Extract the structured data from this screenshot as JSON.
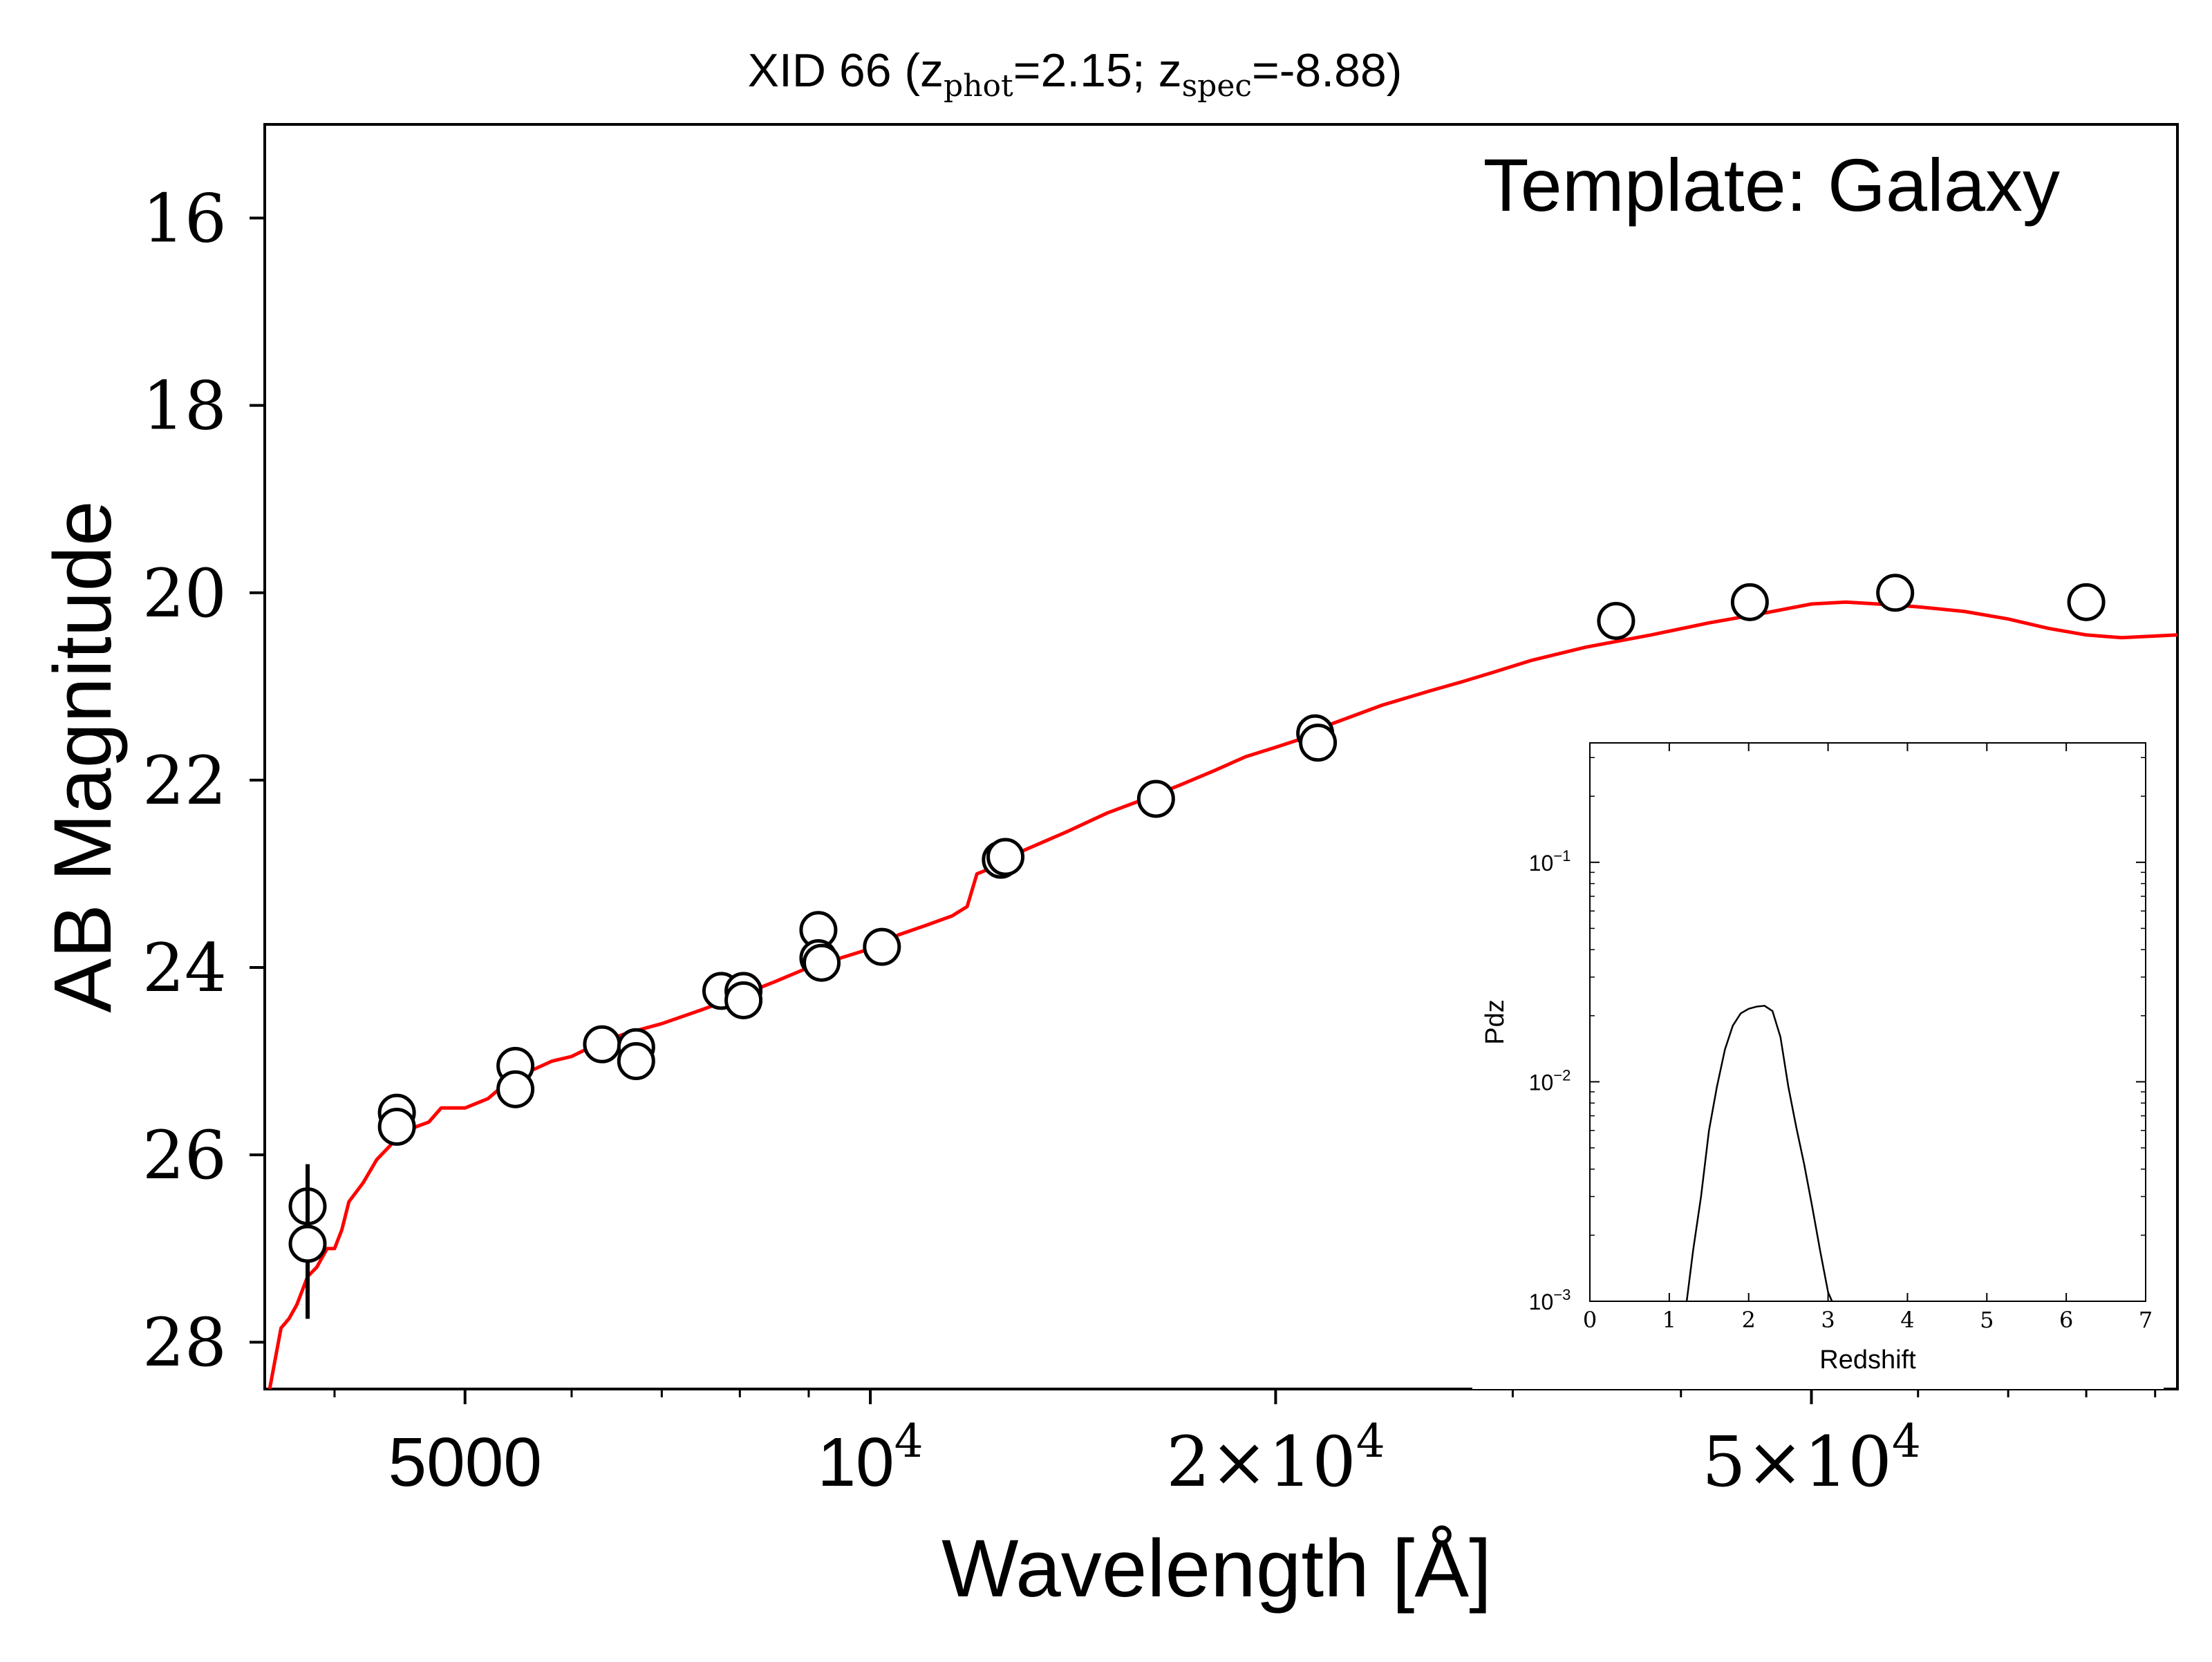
{
  "chart_data": [
    {
      "type": "scatter",
      "title": {
        "prefix": "XID 66 (z",
        "phot_sub": "phot",
        "phot_value": "=2.15; z",
        "spec_sub": "spec",
        "spec_value": "=-8.88)"
      },
      "annotation": "Template: Galaxy",
      "xlabel": "Wavelength [Å]",
      "ylabel": "AB Magnitude",
      "x_scale": "log",
      "xlim": [
        3550,
        93500
      ],
      "ylim": [
        28.5,
        15.0
      ],
      "y_inverted": true,
      "x_ticks": [
        {
          "value": 5000,
          "label": "5000"
        },
        {
          "value": 10000,
          "base": "10",
          "exp": "4"
        },
        {
          "value": 20000,
          "mant": "2×10",
          "exp": "4"
        },
        {
          "value": 50000,
          "mant": "5×10",
          "exp": "4"
        }
      ],
      "y_ticks": [
        {
          "value": 16,
          "label": "16"
        },
        {
          "value": 18,
          "label": "18"
        },
        {
          "value": 20,
          "label": "20"
        },
        {
          "value": 22,
          "label": "22"
        },
        {
          "value": 24,
          "label": "24"
        },
        {
          "value": 26,
          "label": "26"
        },
        {
          "value": 28,
          "label": "28"
        }
      ],
      "grid": false,
      "points": [
        {
          "x": 3820,
          "y": 26.55,
          "yerr": 0.45
        },
        {
          "x": 3820,
          "y": 26.95,
          "yerr": 0.8
        },
        {
          "x": 4450,
          "y": 25.55
        },
        {
          "x": 4450,
          "y": 25.7
        },
        {
          "x": 5450,
          "y": 25.05
        },
        {
          "x": 5450,
          "y": 25.3
        },
        {
          "x": 6320,
          "y": 24.82
        },
        {
          "x": 6700,
          "y": 24.85
        },
        {
          "x": 6700,
          "y": 25.0
        },
        {
          "x": 7750,
          "y": 24.25
        },
        {
          "x": 8050,
          "y": 24.25
        },
        {
          "x": 8050,
          "y": 24.35
        },
        {
          "x": 9150,
          "y": 23.6
        },
        {
          "x": 9150,
          "y": 23.9
        },
        {
          "x": 9200,
          "y": 23.95
        },
        {
          "x": 10200,
          "y": 23.78
        },
        {
          "x": 12500,
          "y": 22.85
        },
        {
          "x": 12600,
          "y": 22.82
        },
        {
          "x": 16300,
          "y": 22.2
        },
        {
          "x": 21400,
          "y": 21.5
        },
        {
          "x": 21500,
          "y": 21.6
        },
        {
          "x": 35800,
          "y": 20.3
        },
        {
          "x": 45000,
          "y": 20.1
        },
        {
          "x": 57700,
          "y": 20.0
        },
        {
          "x": 80000,
          "y": 20.1
        }
      ],
      "marker_color": "#000000",
      "model": {
        "color": "#ff0000",
        "x": [
          3580,
          3650,
          3700,
          3750,
          3820,
          3880,
          3950,
          4000,
          4050,
          4100,
          4200,
          4300,
          4400,
          4500,
          4600,
          4700,
          4800,
          5000,
          5200,
          5400,
          5600,
          5800,
          6000,
          6300,
          6600,
          7000,
          7500,
          8000,
          8500,
          9000,
          9500,
          10000,
          10500,
          11000,
          11500,
          11800,
          12000,
          12500,
          13000,
          14000,
          15000,
          16000,
          17000,
          18000,
          19000,
          20000,
          21000,
          22000,
          24000,
          26000,
          27500,
          29000,
          31000,
          34000,
          38000,
          42000,
          46000,
          50000,
          53000,
          56000,
          60000,
          65000,
          70000,
          75000,
          80000,
          85000,
          93500
        ],
        "y": [
          28.5,
          27.85,
          27.75,
          27.6,
          27.3,
          27.2,
          27.0,
          27.0,
          26.8,
          26.5,
          26.3,
          26.05,
          25.9,
          25.75,
          25.7,
          25.65,
          25.5,
          25.5,
          25.4,
          25.2,
          25.1,
          25.0,
          24.95,
          24.8,
          24.7,
          24.6,
          24.45,
          24.3,
          24.15,
          24.0,
          23.9,
          23.8,
          23.65,
          23.55,
          23.45,
          23.35,
          23.0,
          22.9,
          22.75,
          22.55,
          22.35,
          22.2,
          22.05,
          21.9,
          21.75,
          21.65,
          21.55,
          21.4,
          21.2,
          21.05,
          20.95,
          20.85,
          20.72,
          20.58,
          20.45,
          20.32,
          20.22,
          20.12,
          20.1,
          20.12,
          20.15,
          20.2,
          20.28,
          20.38,
          20.45,
          20.48,
          20.45
        ]
      }
    },
    {
      "type": "line",
      "xlabel": "Redshift",
      "ylabel": "Pdz",
      "y_scale": "log",
      "xlim": [
        0,
        7
      ],
      "ylim": [
        0.001,
        0.35
      ],
      "x_ticks": [
        {
          "value": 0,
          "label": "0"
        },
        {
          "value": 1,
          "label": "1"
        },
        {
          "value": 2,
          "label": "2"
        },
        {
          "value": 3,
          "label": "3"
        },
        {
          "value": 4,
          "label": "4"
        },
        {
          "value": 5,
          "label": "5"
        },
        {
          "value": 6,
          "label": "6"
        },
        {
          "value": 7,
          "label": "7"
        }
      ],
      "y_ticks": [
        {
          "value": 0.1,
          "base": "10",
          "exp": "−1"
        },
        {
          "value": 0.01,
          "base": "10",
          "exp": "−2"
        },
        {
          "value": 0.001,
          "base": "10",
          "exp": "−3"
        }
      ],
      "line_color": "#000000",
      "x": [
        1.22,
        1.3,
        1.4,
        1.5,
        1.6,
        1.7,
        1.8,
        1.9,
        2.0,
        2.1,
        2.2,
        2.3,
        2.4,
        2.5,
        2.6,
        2.7,
        2.8,
        2.9,
        3.0,
        3.05
      ],
      "y": [
        0.001,
        0.0017,
        0.003,
        0.006,
        0.0095,
        0.014,
        0.018,
        0.0205,
        0.0215,
        0.022,
        0.0222,
        0.021,
        0.016,
        0.0095,
        0.0062,
        0.0042,
        0.0027,
        0.0017,
        0.0011,
        0.001
      ]
    }
  ]
}
